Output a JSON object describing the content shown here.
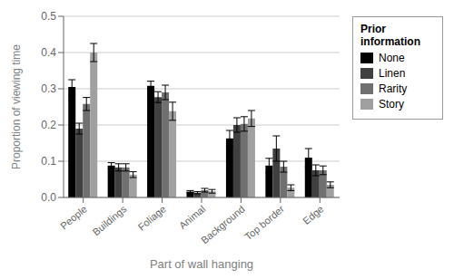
{
  "chart_data": {
    "type": "bar",
    "xlabel": "Part of wall hanging",
    "ylabel": "Proportion of viewing time",
    "legend_title": "Prior\ninformation",
    "categories": [
      "People",
      "Buildings",
      "Foliage",
      "Animal",
      "Background",
      "Top border",
      "Edge"
    ],
    "series": [
      {
        "name": "None",
        "color": "#000000",
        "values": [
          0.305,
          0.088,
          0.308,
          0.016,
          0.163,
          0.088,
          0.11
        ],
        "errors": [
          0.02,
          0.008,
          0.013,
          0.003,
          0.022,
          0.02,
          0.025
        ]
      },
      {
        "name": "Linen",
        "color": "#404040",
        "values": [
          0.19,
          0.083,
          0.277,
          0.013,
          0.2,
          0.135,
          0.075
        ],
        "errors": [
          0.015,
          0.01,
          0.015,
          0.003,
          0.02,
          0.035,
          0.015
        ]
      },
      {
        "name": "Rarity",
        "color": "#707070",
        "values": [
          0.258,
          0.083,
          0.29,
          0.02,
          0.203,
          0.085,
          0.075
        ],
        "errors": [
          0.018,
          0.01,
          0.02,
          0.005,
          0.02,
          0.015,
          0.012
        ]
      },
      {
        "name": "Story",
        "color": "#a0a0a0",
        "values": [
          0.4,
          0.063,
          0.238,
          0.017,
          0.218,
          0.027,
          0.035
        ],
        "errors": [
          0.025,
          0.008,
          0.025,
          0.005,
          0.022,
          0.008,
          0.008
        ]
      }
    ],
    "ylim": [
      0,
      0.5
    ],
    "yticks": [
      {
        "value": 0,
        "label": "0.0"
      },
      0.1,
      0.2,
      0.3,
      0.4,
      0.5
    ],
    "grid": true,
    "legend": "right"
  }
}
